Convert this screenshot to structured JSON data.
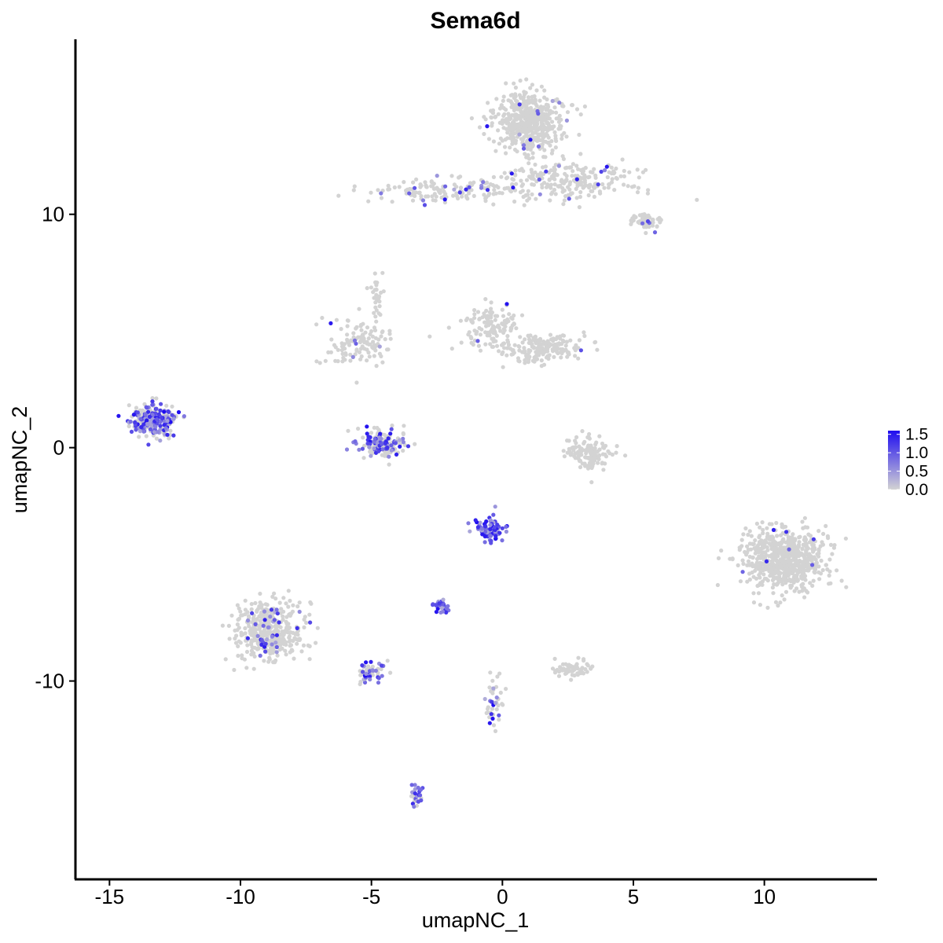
{
  "chart_data": {
    "type": "scatter",
    "title": "Sema6d",
    "xlabel": "umapNC_1",
    "ylabel": "umapNC_2",
    "xlim": [
      -16.3,
      14.3
    ],
    "ylim": [
      -18.5,
      17.5
    ],
    "x_ticks": [
      -15,
      -10,
      -5,
      0,
      5,
      10
    ],
    "x_tick_labels": [
      "-15",
      "-10",
      "-5",
      "0",
      "5",
      "10"
    ],
    "y_ticks": [
      -10,
      0,
      10
    ],
    "y_tick_labels": [
      "-10",
      "0",
      "10"
    ],
    "grid": false,
    "legend": {
      "placement": "right",
      "type": "colorbar",
      "range": [
        0,
        1.6
      ],
      "ticks": [
        0.0,
        0.5,
        1.0,
        1.5
      ],
      "tick_labels": [
        "0.0",
        "0.5",
        "1.0",
        "1.5"
      ],
      "low_color": "#d3d3d3",
      "high_color": "#1f0df0"
    },
    "clusters": [
      {
        "center": [
          1.0,
          14.0
        ],
        "spread": [
          1.2,
          1.2
        ],
        "n": 500,
        "expr": 0.02
      },
      {
        "center": [
          2.5,
          11.5
        ],
        "spread": [
          2.4,
          0.7
        ],
        "n": 220,
        "expr": 0.03
      },
      {
        "center": [
          -2.0,
          11.0
        ],
        "spread": [
          3.0,
          0.5
        ],
        "n": 160,
        "expr": 0.06
      },
      {
        "center": [
          5.5,
          9.7
        ],
        "spread": [
          0.6,
          0.4
        ],
        "n": 60,
        "expr": 0.05
      },
      {
        "center": [
          -5.5,
          4.5
        ],
        "spread": [
          1.5,
          0.9
        ],
        "n": 120,
        "expr": 0.03
      },
      {
        "center": [
          -4.8,
          6.5
        ],
        "spread": [
          0.3,
          1.0
        ],
        "n": 30,
        "expr": 0.0
      },
      {
        "center": [
          -0.5,
          5.2
        ],
        "spread": [
          1.0,
          0.9
        ],
        "n": 120,
        "expr": 0.01
      },
      {
        "center": [
          1.5,
          4.2
        ],
        "spread": [
          1.5,
          0.6
        ],
        "n": 180,
        "expr": 0.01
      },
      {
        "center": [
          -13.3,
          1.2
        ],
        "spread": [
          0.8,
          0.6
        ],
        "n": 250,
        "expr": 0.4
      },
      {
        "center": [
          -4.6,
          0.2
        ],
        "spread": [
          0.8,
          0.5
        ],
        "n": 180,
        "expr": 0.3
      },
      {
        "center": [
          3.3,
          -0.2
        ],
        "spread": [
          0.8,
          0.6
        ],
        "n": 120,
        "expr": 0.0
      },
      {
        "center": [
          10.8,
          -4.8
        ],
        "spread": [
          1.4,
          1.2
        ],
        "n": 650,
        "expr": 0.01
      },
      {
        "center": [
          -0.5,
          -3.5
        ],
        "spread": [
          0.5,
          0.5
        ],
        "n": 90,
        "expr": 0.7
      },
      {
        "center": [
          -2.3,
          -6.8
        ],
        "spread": [
          0.3,
          0.2
        ],
        "n": 30,
        "expr": 0.8
      },
      {
        "center": [
          -8.9,
          -7.8
        ],
        "spread": [
          1.2,
          1.1
        ],
        "n": 420,
        "expr": 0.06
      },
      {
        "center": [
          -5.0,
          -9.6
        ],
        "spread": [
          0.6,
          0.4
        ],
        "n": 60,
        "expr": 0.35
      },
      {
        "center": [
          2.6,
          -9.5
        ],
        "spread": [
          0.6,
          0.3
        ],
        "n": 60,
        "expr": 0.0
      },
      {
        "center": [
          -3.3,
          -14.9
        ],
        "spread": [
          0.2,
          0.4
        ],
        "n": 30,
        "expr": 0.45
      },
      {
        "center": [
          -0.3,
          -11.0
        ],
        "spread": [
          0.3,
          1.0
        ],
        "n": 40,
        "expr": 0.25
      }
    ],
    "scatter_cell_count": 3840
  }
}
